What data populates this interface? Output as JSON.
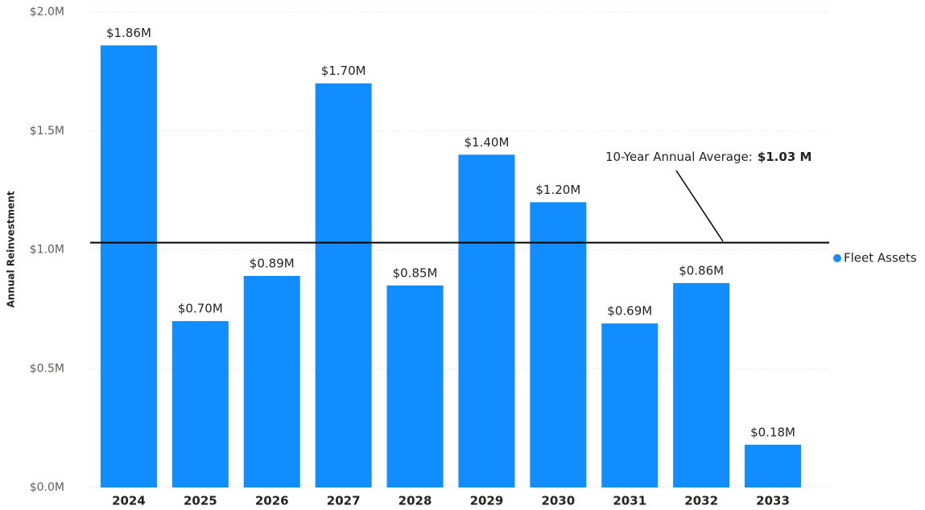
{
  "chart_data": {
    "type": "bar",
    "y_axis_label": "Annual Reinvestment",
    "categories": [
      "2024",
      "2025",
      "2026",
      "2027",
      "2028",
      "2029",
      "2030",
      "2031",
      "2032",
      "2033"
    ],
    "series": [
      {
        "name": "Fleet Assets",
        "color": "#118DFF",
        "values": [
          1860000,
          700000,
          890000,
          1700000,
          850000,
          1400000,
          1200000,
          690000,
          860000,
          180000
        ],
        "value_labels": [
          "$1.86M",
          "$0.70M",
          "$0.89M",
          "$1.70M",
          "$0.85M",
          "$1.40M",
          "$1.20M",
          "$0.69M",
          "$0.86M",
          "$0.18M"
        ]
      }
    ],
    "ylim": [
      0,
      2000000
    ],
    "yticks": [
      {
        "value": 0,
        "label": "$0.0M"
      },
      {
        "value": 500000,
        "label": "$0.5M"
      },
      {
        "value": 1000000,
        "label": "$1.0M"
      },
      {
        "value": 1500000,
        "label": "$1.5M"
      },
      {
        "value": 2000000,
        "label": "$2.0M"
      }
    ],
    "grid": true,
    "legend": "right",
    "reference_line": {
      "value": 1030000,
      "label_prefix": "10-Year Annual Average:",
      "label": "$1.03 M",
      "color": "#000000"
    }
  }
}
